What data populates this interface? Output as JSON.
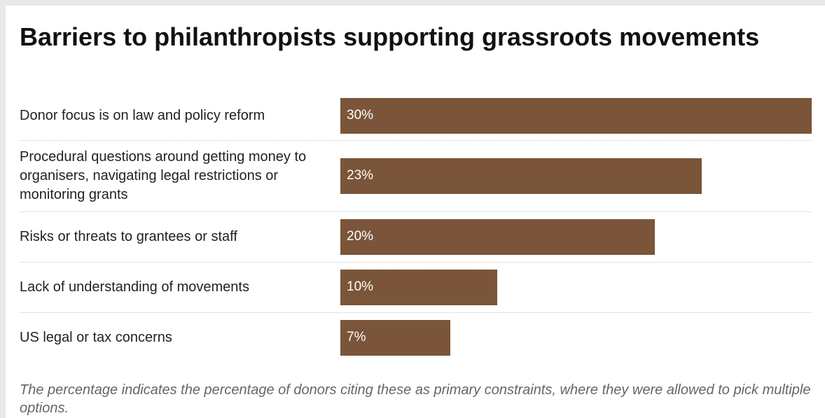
{
  "chart_data": {
    "type": "bar",
    "orientation": "horizontal",
    "title": "Barriers to philanthropists supporting grassroots movements",
    "categories": [
      "Donor focus is on law and policy reform",
      "Procedural questions around getting money to organisers, navigating legal restrictions or monitoring grants",
      "Risks or threats to grantees or staff",
      "Lack of understanding of movements",
      "US legal or tax concerns"
    ],
    "values": [
      30,
      23,
      20,
      10,
      7
    ],
    "value_labels": [
      "30%",
      "23%",
      "20%",
      "10%",
      "7%"
    ],
    "unit": "%",
    "xlim": [
      0,
      30
    ],
    "grid": false,
    "bar_color": "#7a5539",
    "note": "The percentage indicates the percentage of donors citing these as primary constraints, where they were allowed to pick multiple options."
  }
}
